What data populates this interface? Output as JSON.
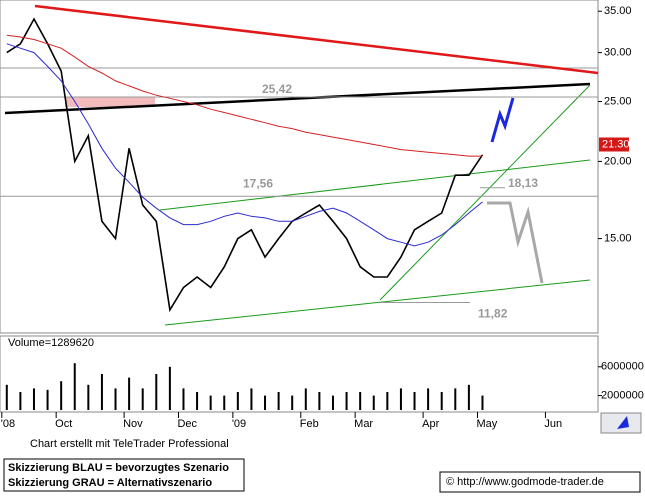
{
  "chart_data": {
    "type": "line",
    "log_scale": true,
    "categories": [
      "'08",
      null,
      null,
      null,
      "Oct",
      null,
      null,
      null,
      null,
      "Nov",
      null,
      null,
      null,
      "Dec",
      null,
      null,
      null,
      "'09",
      null,
      null,
      null,
      null,
      "Feb",
      null,
      null,
      null,
      "Mar",
      null,
      null,
      null,
      null,
      "Apr",
      null,
      null,
      null,
      "May",
      null,
      null,
      null,
      null,
      "Jun",
      null,
      null,
      null
    ],
    "series": [
      {
        "color": "#000000",
        "values": [
          30,
          31,
          34,
          31,
          28,
          20,
          22,
          16,
          15,
          21,
          17,
          16,
          11.5,
          12.5,
          13,
          12.5,
          13.5,
          15,
          15.5,
          14,
          15,
          16,
          16.5,
          17,
          16,
          15,
          13.5,
          13,
          13,
          14,
          15.5,
          16,
          16.5,
          19,
          19,
          20.5,
          null,
          null,
          null,
          null,
          null,
          null,
          null,
          null
        ]
      },
      {
        "color": "#2a2ad0",
        "values": [
          31,
          30.5,
          30,
          28.5,
          27,
          25,
          23,
          21,
          19.5,
          18.5,
          17.5,
          16.8,
          16.2,
          15.8,
          15.8,
          16,
          16.3,
          16.5,
          16.3,
          16.2,
          16,
          16,
          16.3,
          16.6,
          16.8,
          16.5,
          16,
          15.5,
          15,
          14.8,
          14.6,
          14.8,
          15.2,
          15.8,
          16.5,
          17.2,
          null,
          null,
          null,
          null,
          null,
          null,
          null,
          null
        ]
      },
      {
        "color": "#d42020",
        "values": [
          32,
          31.8,
          31.5,
          31,
          30.5,
          29.5,
          28.5,
          27.8,
          27,
          26.5,
          26,
          25.6,
          25.3,
          25,
          24.7,
          24.3,
          24,
          23.7,
          23.4,
          23.1,
          22.8,
          22.6,
          22.3,
          22.1,
          21.9,
          21.7,
          21.5,
          21.3,
          21.1,
          20.9,
          20.8,
          20.7,
          20.6,
          20.5,
          20.4,
          20.4,
          null,
          null,
          null,
          null,
          null,
          null,
          null,
          null
        ]
      }
    ],
    "ylim": [
      10.55,
      36.5
    ],
    "yticks": [
      {
        "value": 15,
        "label": "15.00"
      },
      {
        "value": 20,
        "label": "20.00"
      },
      {
        "value": 25,
        "label": "25.00"
      },
      {
        "value": 30,
        "label": "30.00"
      },
      {
        "value": 35,
        "label": "35.00"
      }
    ],
    "last_price": {
      "value": 21.3,
      "label": "21.30"
    },
    "levels": [
      {
        "value": 25.42,
        "label": "25,42"
      },
      {
        "value": 17.56,
        "label": "17,56"
      },
      {
        "value": 18.13,
        "label": "18,13"
      },
      {
        "value": 11.82,
        "label": "11,82"
      }
    ],
    "volume_title": "Volume=1289620",
    "volume": {
      "color": "#000000",
      "values": [
        3500000,
        2500000,
        3000000,
        2800000,
        4000000,
        6500000,
        3500000,
        5000000,
        3000000,
        4500000,
        3000000,
        5000000,
        6000000,
        3000000,
        2500000,
        2000000,
        2000000,
        2500000,
        3000000,
        2000000,
        2500000,
        2000000,
        3000000,
        2500000,
        2000000,
        2500000,
        2500000,
        2000000,
        2500000,
        3000000,
        2500000,
        3000000,
        2500000,
        3000000,
        3500000,
        2000000,
        null,
        null,
        null,
        null,
        null,
        null,
        null,
        null
      ]
    },
    "volume_ylim": [
      0,
      10000000
    ],
    "volume_yticks": [
      2000000,
      6000000
    ]
  },
  "footer": {
    "credit": "Chart erstellt mit TeleTrader Professional",
    "legend_blue": "Skizzierung BLAU = bevorzugtes Szenario",
    "legend_grey": "Skizzierung GRAU = Alternativszenario",
    "source": "© http://www.godmode-trader.de"
  }
}
